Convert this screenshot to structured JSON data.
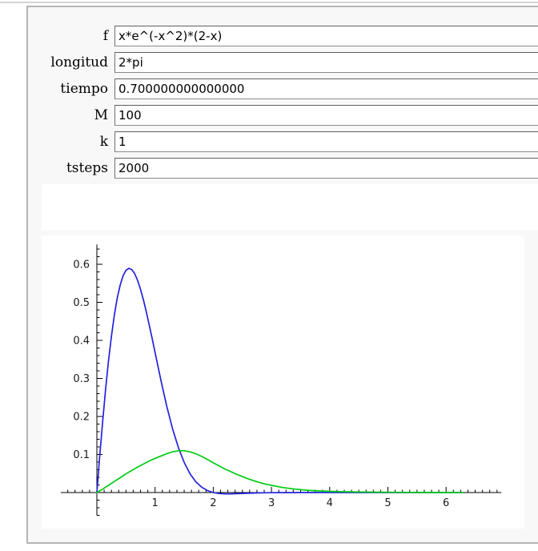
{
  "form": {
    "rows": [
      {
        "label": "f",
        "value": "x*e^(-x^2)*(2-x)"
      },
      {
        "label": "longitud",
        "value": "2*pi"
      },
      {
        "label": "tiempo",
        "value": "0.700000000000000"
      },
      {
        "label": "M",
        "value": "100"
      },
      {
        "label": "k",
        "value": "1"
      },
      {
        "label": "tsteps",
        "value": "2000"
      }
    ]
  },
  "chart_data": {
    "type": "line",
    "title": "",
    "xlabel": "",
    "ylabel": "",
    "xlim": [
      -0.62,
      6.95
    ],
    "ylim": [
      -0.06,
      0.652
    ],
    "x_major_ticks": [
      1,
      2,
      3,
      4,
      5,
      6
    ],
    "x_major_tick_labels": [
      "1",
      "2",
      "3",
      "4",
      "5",
      "6"
    ],
    "y_major_ticks": [
      0.1,
      0.2,
      0.3,
      0.4,
      0.5,
      0.6
    ],
    "y_major_tick_labels": [
      "0.1",
      "0.2",
      "0.3",
      "0.4",
      "0.5",
      "0.6"
    ],
    "x_minor_step": 0.125,
    "y_minor_step": 0.02,
    "grid": false,
    "legend": "none",
    "axes_color": "#000000",
    "series": [
      {
        "name": "blue-curve-initial-condition",
        "color": "#2222dd",
        "points": [
          [
            0,
            0
          ],
          [
            0.05,
            0.0973
          ],
          [
            0.1,
            0.1881
          ],
          [
            0.15,
            0.2713
          ],
          [
            0.2,
            0.3459
          ],
          [
            0.25,
            0.411
          ],
          [
            0.3,
            0.4661
          ],
          [
            0.35,
            0.5109
          ],
          [
            0.4,
            0.5453
          ],
          [
            0.45,
            0.5695
          ],
          [
            0.5,
            0.5841
          ],
          [
            0.55,
            0.5894
          ],
          [
            0.6,
            0.5861
          ],
          [
            0.65,
            0.5751
          ],
          [
            0.7,
            0.5574
          ],
          [
            0.75,
            0.5342
          ],
          [
            0.8,
            0.5062
          ],
          [
            0.85,
            0.4746
          ],
          [
            0.9,
            0.4405
          ],
          [
            0.95,
            0.4047
          ],
          [
            1.0,
            0.3679
          ],
          [
            1.1,
            0.2952
          ],
          [
            1.2,
            0.2275
          ],
          [
            1.3,
            0.1679
          ],
          [
            1.4,
            0.1183
          ],
          [
            1.5,
            0.079
          ],
          [
            1.6,
            0.0494
          ],
          [
            1.7,
            0.0283
          ],
          [
            1.8,
            0.0141
          ],
          [
            1.9,
            0.0052
          ],
          [
            2.0,
            0
          ],
          [
            2.1,
            -0.0026
          ],
          [
            2.2,
            -0.0035
          ],
          [
            2.3,
            -0.0035
          ],
          [
            2.4,
            -0.003
          ],
          [
            2.5,
            -0.0024
          ],
          [
            2.6,
            -0.0018
          ],
          [
            2.7,
            -0.0013
          ],
          [
            2.8,
            -0.0009
          ],
          [
            2.9,
            -0.0006
          ],
          [
            3.0,
            -0.0004
          ],
          [
            3.2,
            -0.0002
          ],
          [
            3.5,
            -0.0001
          ],
          [
            4.0,
            0
          ],
          [
            4.5,
            0
          ],
          [
            5.0,
            0
          ],
          [
            5.5,
            0
          ],
          [
            6.0,
            0
          ],
          [
            6.283,
            0
          ]
        ]
      },
      {
        "name": "green-curve-solution",
        "color": "#00cc11",
        "points": [
          [
            0,
            0
          ],
          [
            0.1,
            0.009
          ],
          [
            0.2,
            0.019
          ],
          [
            0.3,
            0.029
          ],
          [
            0.4,
            0.039
          ],
          [
            0.5,
            0.049
          ],
          [
            0.6,
            0.058
          ],
          [
            0.7,
            0.067
          ],
          [
            0.8,
            0.075
          ],
          [
            0.9,
            0.083
          ],
          [
            1.0,
            0.09
          ],
          [
            1.1,
            0.096
          ],
          [
            1.2,
            0.102
          ],
          [
            1.3,
            0.107
          ],
          [
            1.4,
            0.11
          ],
          [
            1.5,
            0.11
          ],
          [
            1.6,
            0.107
          ],
          [
            1.7,
            0.102
          ],
          [
            1.8,
            0.095
          ],
          [
            1.9,
            0.087
          ],
          [
            2.0,
            0.078
          ],
          [
            2.1,
            0.07
          ],
          [
            2.2,
            0.062
          ],
          [
            2.3,
            0.055
          ],
          [
            2.4,
            0.048
          ],
          [
            2.5,
            0.042
          ],
          [
            2.6,
            0.036
          ],
          [
            2.7,
            0.031
          ],
          [
            2.8,
            0.026
          ],
          [
            2.9,
            0.022
          ],
          [
            3.0,
            0.019
          ],
          [
            3.2,
            0.013
          ],
          [
            3.4,
            0.009
          ],
          [
            3.6,
            0.006
          ],
          [
            3.8,
            0.0045
          ],
          [
            4.0,
            0.0032
          ],
          [
            4.25,
            0.0022
          ],
          [
            4.5,
            0.0015
          ],
          [
            4.75,
            0.001
          ],
          [
            5.0,
            0.0007
          ],
          [
            5.5,
            0.0003
          ],
          [
            6.0,
            0.0001
          ],
          [
            6.283,
            0
          ]
        ]
      }
    ]
  }
}
